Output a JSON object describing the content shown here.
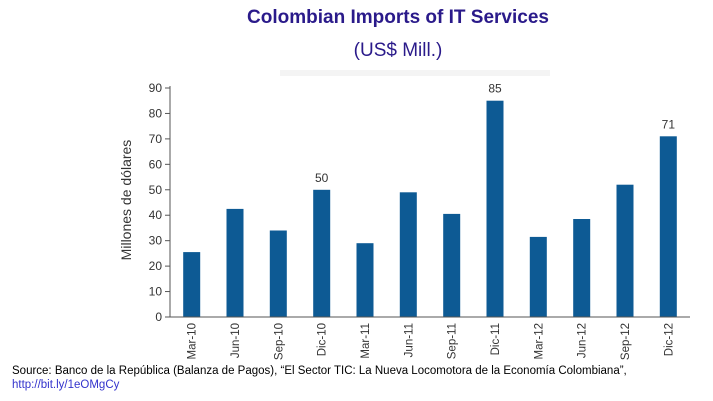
{
  "header": {
    "title": "Colombian Imports of IT Services",
    "subtitle": "(US$ Mill.)"
  },
  "chart_data": {
    "type": "bar",
    "categories": [
      "Mar-10",
      "Jun-10",
      "Sep-10",
      "Dic-10",
      "Mar-11",
      "Jun-11",
      "Sep-11",
      "Dic-11",
      "Mar-12",
      "Jun-12",
      "Sep-12",
      "Dic-12"
    ],
    "values": [
      25.5,
      42.5,
      34,
      50,
      29,
      49,
      40.5,
      85,
      31.5,
      38.5,
      52,
      71
    ],
    "data_labels": [
      {
        "index": 3,
        "text": "50"
      },
      {
        "index": 7,
        "text": "85"
      },
      {
        "index": 11,
        "text": "71"
      }
    ],
    "ylabel": "Millones de dólares",
    "xlabel": "",
    "ylim": [
      0,
      90
    ],
    "yticks": [
      0,
      10,
      20,
      30,
      40,
      50,
      60,
      70,
      80,
      90
    ],
    "grid": false,
    "bar_color": "#0d5a94"
  },
  "footer": {
    "source_text": "Source: Banco de la República (Balanza de Pagos), “El Sector TIC: La Nueva Locomotora de la Economía Colombiana”,",
    "source_link": "http://bit.ly/1eOMgCy"
  }
}
